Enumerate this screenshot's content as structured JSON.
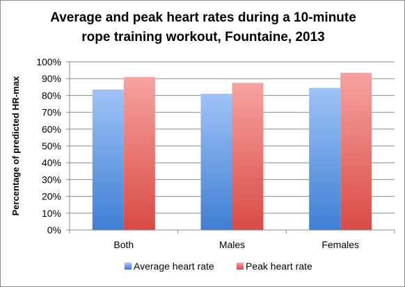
{
  "chart_data": {
    "type": "bar",
    "title_lines": [
      "Average and peak heart rates during a 10-minute",
      "rope training workout, Fountaine, 2013"
    ],
    "xlabel": "",
    "ylabel": "Percentage of predicted HR-max",
    "categories": [
      "Both",
      "Males",
      "Females"
    ],
    "series": [
      {
        "name": "Average heart rate",
        "values": [
          83.5,
          81,
          84.5
        ],
        "color_top": "#9ec3f7",
        "color_bottom": "#3f7fd4"
      },
      {
        "name": "Peak heart rate",
        "values": [
          91,
          87.5,
          93.5
        ],
        "color_top": "#f7a3a0",
        "color_bottom": "#d94a44"
      }
    ],
    "ylim": [
      0,
      100
    ],
    "yticks": [
      0,
      10,
      20,
      30,
      40,
      50,
      60,
      70,
      80,
      90,
      100
    ],
    "ytick_labels": [
      "0%",
      "10%",
      "20%",
      "30%",
      "40%",
      "50%",
      "60%",
      "70%",
      "80%",
      "90%",
      "100%"
    ],
    "grid": true,
    "legend_position": "bottom"
  }
}
